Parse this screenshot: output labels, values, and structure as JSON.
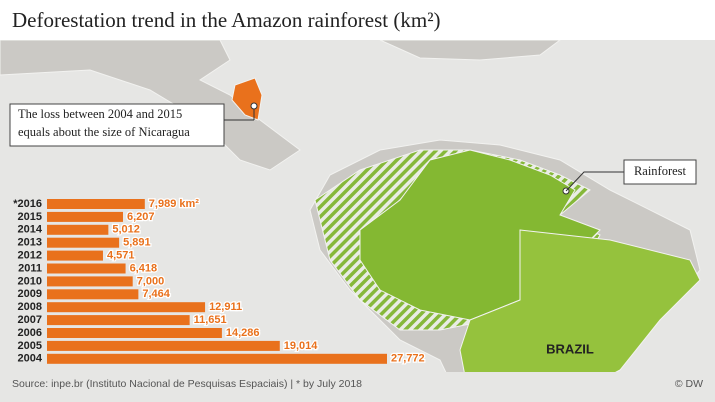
{
  "chart_data": {
    "type": "bar",
    "orientation": "horizontal",
    "title": "Deforestation trend in the Amazon rainforest (km²)",
    "categories": [
      "*2016",
      "2015",
      "2014",
      "2013",
      "2012",
      "2011",
      "2010",
      "2009",
      "2008",
      "2007",
      "2006",
      "2005",
      "2004"
    ],
    "values": [
      7989,
      6207,
      5012,
      5891,
      4571,
      6418,
      7000,
      7464,
      12911,
      11651,
      14286,
      19014,
      27772
    ],
    "value_labels": [
      "7,989 km²",
      "6,207",
      "5,012",
      "5,891",
      "4,571",
      "6,418",
      "7,000",
      "7,464",
      "12,911",
      "11,651",
      "14,286",
      "19,014",
      "27,772"
    ],
    "color": "#e9711c",
    "annotations": {
      "nicaragua": [
        "The loss between 2004 and 2015",
        "equals about the size of Nicaragua"
      ],
      "rainforest": "Rainforest",
      "country": "BRAZIL"
    },
    "source": "Source: inpe.br (Instituto Nacional de Pesquisas Espaciais) | * by July 2018",
    "credit": "© DW"
  }
}
